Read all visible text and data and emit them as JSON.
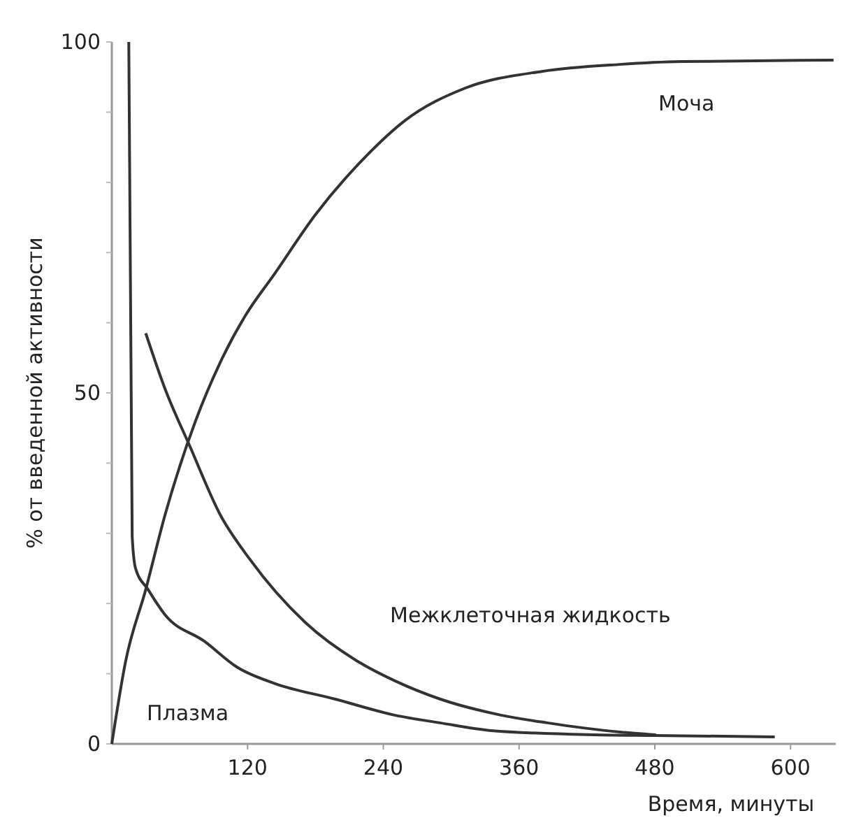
{
  "chart_data": {
    "type": "line",
    "xlabel": "Время, минуты",
    "ylabel": "% от введенной активности",
    "xlim": [
      0,
      640
    ],
    "ylim": [
      0,
      100
    ],
    "xticks": [
      120,
      240,
      360,
      480,
      600
    ],
    "yticks": [
      0,
      {
        "value": 10,
        "label": null
      },
      {
        "value": 20,
        "label": null
      },
      {
        "value": 30,
        "label": null
      },
      {
        "value": 40,
        "label": null
      },
      50,
      {
        "value": 60,
        "label": null
      },
      {
        "value": 70,
        "label": null
      },
      {
        "value": 80,
        "label": null
      },
      {
        "value": 90,
        "label": null
      },
      100
    ],
    "grid": false,
    "marker": "none",
    "line_style": "solid",
    "series": [
      {
        "name": "Плазма",
        "color": "#333333",
        "x": [
          15,
          18,
          21,
          32,
          47,
          82,
          111,
          144,
          197,
          250,
          290,
          335,
          426,
          481,
          586
        ],
        "values": [
          100,
          29.6,
          25,
          22,
          18.4,
          14.6,
          10.9,
          8.6,
          6.4,
          4.1,
          3.0,
          1.9,
          1.3,
          1.2,
          1.0
        ]
      },
      {
        "name": "Межклеточная жидкость",
        "color": "#333333",
        "x": [
          30,
          47,
          69,
          96,
          122,
          171,
          219,
          250,
          290,
          344,
          385,
          449,
          481
        ],
        "values": [
          58.5,
          50.6,
          42.4,
          32.6,
          26.3,
          17.3,
          11.6,
          9.0,
          6.4,
          4.1,
          3.0,
          1.7,
          1.3
        ]
      },
      {
        "name": "Моча",
        "color": "#333333",
        "x": [
          0,
          12,
          30,
          47,
          74,
          96,
          118,
          144,
          180,
          224,
          260,
          312,
          380,
          449,
          503,
          638
        ],
        "values": [
          0,
          11.6,
          22,
          32.6,
          46,
          54.4,
          61,
          67,
          75.4,
          83.6,
          88.9,
          93.4,
          95.8,
          96.8,
          97.2,
          97.4
        ]
      }
    ]
  }
}
